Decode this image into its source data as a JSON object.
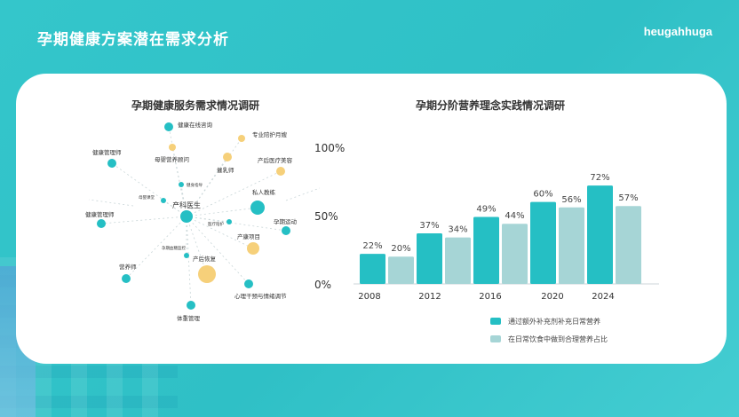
{
  "page": {
    "title": "孕期健康方案潜在需求分析",
    "brand": "heugahhuga"
  },
  "colors": {
    "teal": "#25bfc4",
    "light_teal": "#a6d5d6",
    "yellow": "#f6d07a",
    "white": "#ffffff"
  },
  "network": {
    "title": "孕期健康服务需求情况调研",
    "center_label": "产科医生",
    "nodes": [
      {
        "label": "健康在线咨询",
        "color": "teal"
      },
      {
        "label": "专业陪护月嫂",
        "color": "yellow"
      },
      {
        "label": "母婴营养顾问",
        "color": "yellow"
      },
      {
        "label": "健康管理师",
        "color": "teal"
      },
      {
        "label": "催乳师",
        "color": "yellow"
      },
      {
        "label": "产后医疗美容",
        "color": "yellow"
      },
      {
        "label": "健身指导",
        "color": "teal"
      },
      {
        "label": "私人教练",
        "color": "teal"
      },
      {
        "label": "母婴课堂",
        "color": "teal"
      },
      {
        "label": "健康管理师",
        "color": "teal"
      },
      {
        "label": "医疗陪护",
        "color": "teal"
      },
      {
        "label": "孕期运动",
        "color": "teal"
      },
      {
        "label": "产康项目",
        "color": "yellow"
      },
      {
        "label": "孕期血糖监控",
        "color": "teal"
      },
      {
        "label": "产后恢复",
        "color": "yellow"
      },
      {
        "label": "营养师",
        "color": "teal"
      },
      {
        "label": "心理干预与情绪调节",
        "color": "teal"
      },
      {
        "label": "体重管理",
        "color": "teal"
      }
    ]
  },
  "chart_data": {
    "type": "bar",
    "title": "孕期分阶营养理念实践情况调研",
    "x_tick_labels": [
      "2008",
      "2012",
      "2016",
      "2020",
      "2024"
    ],
    "y_tick_labels": [
      "100%",
      "50%",
      "0%"
    ],
    "ylim": [
      0,
      100
    ],
    "grid": false,
    "legend_position": "bottom-right",
    "series": [
      {
        "name": "通过额外补充剂补充日常营养",
        "color": "#25bfc4",
        "values": [
          22,
          37,
          49,
          60,
          72
        ]
      },
      {
        "name": "在日常饮食中做到合理营养占比",
        "color": "#a6d5d6",
        "values": [
          20,
          34,
          44,
          56,
          57
        ]
      }
    ],
    "data_labels": {
      "series_0": [
        "22%",
        "37%",
        "49%",
        "60%",
        "72%"
      ],
      "series_1": [
        "20%",
        "34%",
        "44%",
        "56%",
        "57%"
      ]
    }
  }
}
